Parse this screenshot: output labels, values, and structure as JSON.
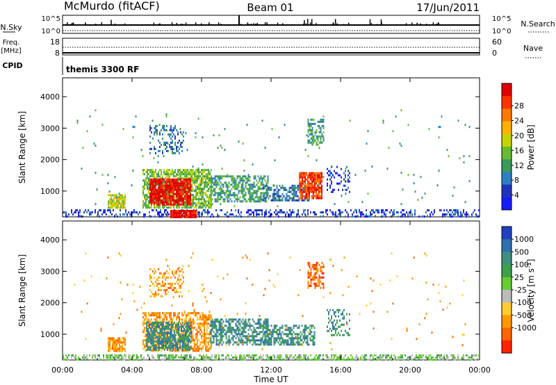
{
  "header": {
    "station": "McMurdo (fitACF)",
    "beam": "Beam 01",
    "date": "17/Jun/2011"
  },
  "summary_panels": {
    "nsky_label": "N.Sky",
    "nsearch_label": "N.Search",
    "scale_top": "10^5",
    "scale_bottom": "10^0",
    "freq_label_1": "Freq.",
    "freq_label_2": "[MHz]",
    "freq_ticks": [
      "18",
      "8"
    ],
    "nave_label": "Nave",
    "nave_ticks": [
      "60",
      "0"
    ],
    "cpid_label": "CPID",
    "cpid_value": "themis 3300 RF"
  },
  "chart_data": [
    {
      "type": "heatmap",
      "ylabel": "Slant Range [km]",
      "xlabel": "Time UT",
      "x_ticks": [
        "00:00",
        "04:00",
        "08:00",
        "12:00",
        "16:00",
        "20:00",
        "00:00"
      ],
      "y_ticks": [
        "1000",
        "2000",
        "3000",
        "4000"
      ],
      "xlim": [
        0,
        24
      ],
      "ylim": [
        180,
        4600
      ],
      "colorbar": {
        "label": "Power [dB]",
        "ticks": [
          "4",
          "8",
          "12",
          "16",
          "20",
          "24",
          "28"
        ],
        "colors": [
          "#1a1aff",
          "#2233bb",
          "#2e7fbf",
          "#3a9a5a",
          "#66bb33",
          "#c8d400",
          "#ffb000",
          "#ff7a00",
          "#ff3300",
          "#e00000"
        ]
      },
      "regions": [
        {
          "t0": 0.0,
          "t1": 24.0,
          "r0": 180,
          "r1": 420,
          "level": 1,
          "density": 0.35
        },
        {
          "t0": 2.6,
          "t1": 3.6,
          "r0": 480,
          "r1": 900,
          "level": 5,
          "density": 0.8
        },
        {
          "t0": 4.6,
          "t1": 8.6,
          "r0": 500,
          "r1": 1700,
          "level": 4,
          "density": 0.75
        },
        {
          "t0": 5.0,
          "t1": 7.4,
          "r0": 550,
          "r1": 1400,
          "level": 9,
          "density": 0.9
        },
        {
          "t0": 6.2,
          "t1": 7.7,
          "r0": 200,
          "r1": 400,
          "level": 9,
          "density": 0.95
        },
        {
          "t0": 8.5,
          "t1": 11.8,
          "r0": 700,
          "r1": 1500,
          "level": 3,
          "density": 0.6
        },
        {
          "t0": 11.5,
          "t1": 14.2,
          "r0": 700,
          "r1": 1200,
          "level": 2,
          "density": 0.55
        },
        {
          "t0": 13.6,
          "t1": 14.9,
          "r0": 800,
          "r1": 1600,
          "level": 8,
          "density": 0.85
        },
        {
          "t0": 14.1,
          "t1": 15.0,
          "r0": 2500,
          "r1": 3300,
          "level": 3,
          "density": 0.55
        },
        {
          "t0": 5.0,
          "t1": 7.0,
          "r0": 2200,
          "r1": 3100,
          "level": 2,
          "density": 0.3
        },
        {
          "t0": 15.2,
          "t1": 16.5,
          "r0": 1000,
          "r1": 1800,
          "level": 1,
          "density": 0.25
        },
        {
          "t0": 0.5,
          "t1": 23.5,
          "r0": 500,
          "r1": 3600,
          "level": 3,
          "density": 0.012
        }
      ]
    },
    {
      "type": "heatmap",
      "ylabel": "Slant Range [km]",
      "xlabel": "Time UT",
      "x_ticks": [
        "00:00",
        "04:00",
        "08:00",
        "12:00",
        "16:00",
        "20:00",
        "00:00"
      ],
      "y_ticks": [
        "1000",
        "2000",
        "3000",
        "4000"
      ],
      "xlim": [
        0,
        24
      ],
      "ylim": [
        180,
        4600
      ],
      "colorbar": {
        "label": "Velocity [m s-1]",
        "ticks": [
          "1000",
          "500",
          "100",
          "25",
          "-25",
          "-100",
          "-500",
          "-1000"
        ],
        "colors": [
          "#2040c0",
          "#2f6fae",
          "#3f8f7f",
          "#3da04a",
          "#66cc33",
          "#bbbbbb",
          "#ffcc33",
          "#ff9900",
          "#ff6600",
          "#ff2200"
        ]
      },
      "regions": [
        {
          "t0": 0.0,
          "t1": 24.0,
          "r0": 180,
          "r1": 360,
          "level": 4,
          "density": 0.55
        },
        {
          "t0": 2.6,
          "t1": 3.6,
          "r0": 480,
          "r1": 900,
          "level": 7,
          "density": 0.8
        },
        {
          "t0": 4.6,
          "t1": 8.6,
          "r0": 500,
          "r1": 1700,
          "level": 7,
          "density": 0.6
        },
        {
          "t0": 4.8,
          "t1": 7.4,
          "r0": 500,
          "r1": 1400,
          "level": 2,
          "density": 0.75
        },
        {
          "t0": 8.5,
          "t1": 11.8,
          "r0": 700,
          "r1": 1500,
          "level": 2,
          "density": 0.6
        },
        {
          "t0": 11.5,
          "t1": 14.5,
          "r0": 700,
          "r1": 1300,
          "level": 2,
          "density": 0.6
        },
        {
          "t0": 14.1,
          "t1": 15.0,
          "r0": 2500,
          "r1": 3300,
          "level": 8,
          "density": 0.5
        },
        {
          "t0": 5.0,
          "t1": 7.0,
          "r0": 2200,
          "r1": 3100,
          "level": 7,
          "density": 0.3
        },
        {
          "t0": 15.2,
          "t1": 16.5,
          "r0": 1000,
          "r1": 1800,
          "level": 2,
          "density": 0.25
        },
        {
          "t0": 0.5,
          "t1": 23.5,
          "r0": 500,
          "r1": 3600,
          "level": 7,
          "density": 0.012
        }
      ]
    }
  ]
}
